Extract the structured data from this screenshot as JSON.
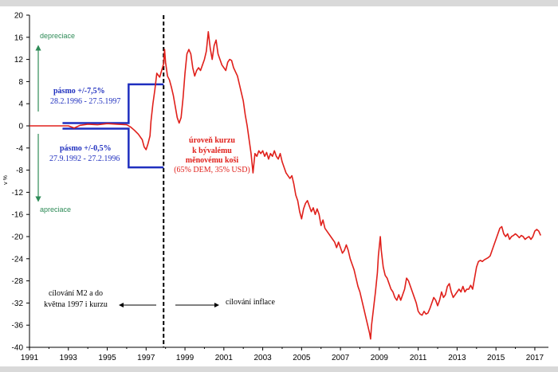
{
  "chart_data": {
    "type": "line",
    "ylabel": "v %",
    "xlim": [
      1991,
      2017.7
    ],
    "ylim": [
      -40,
      20
    ],
    "grid": false,
    "x_ticks": [
      "1991",
      "1993",
      "1995",
      "1997",
      "1999",
      "2001",
      "2003",
      "2005",
      "2007",
      "2009",
      "2011",
      "2013",
      "2015",
      "2017"
    ],
    "y_ticks": [
      "20",
      "16",
      "12",
      "8",
      "4",
      "0",
      "-4",
      "-8",
      "-12",
      "-16",
      "-20",
      "-24",
      "-28",
      "-32",
      "-36",
      "-40"
    ],
    "colors": {
      "exchange_rate": "#e0201b",
      "band": "#1f2fbf",
      "arrows": "#2e8b57",
      "regime_divider": "#000000"
    },
    "regime_divider_x": 1997.9,
    "series": [
      {
        "values_xy": [
          [
            1991.0,
            0
          ],
          [
            1992.0,
            0
          ],
          [
            1993.0,
            0
          ],
          [
            1993.3,
            -0.4
          ],
          [
            1993.6,
            0.1
          ],
          [
            1994.0,
            0.3
          ],
          [
            1994.5,
            0.2
          ],
          [
            1995.0,
            0.4
          ],
          [
            1995.5,
            0.3
          ],
          [
            1996.0,
            0.2
          ],
          [
            1996.2,
            -0.2
          ],
          [
            1996.4,
            -0.8
          ],
          [
            1996.6,
            -1.5
          ],
          [
            1996.8,
            -2.5
          ],
          [
            1996.9,
            -3.8
          ],
          [
            1997.0,
            -4.3
          ],
          [
            1997.1,
            -3.2
          ],
          [
            1997.2,
            -1.8
          ],
          [
            1997.25,
            0.8
          ],
          [
            1997.35,
            4.0
          ],
          [
            1997.45,
            6.5
          ],
          [
            1997.55,
            9.5
          ],
          [
            1997.7,
            8.8
          ],
          [
            1997.9,
            11.2
          ],
          [
            1997.95,
            13.8
          ],
          [
            1998.0,
            11.5
          ],
          [
            1998.1,
            9.0
          ],
          [
            1998.2,
            8.3
          ],
          [
            1998.3,
            7.0
          ],
          [
            1998.4,
            5.5
          ],
          [
            1998.5,
            3.5
          ],
          [
            1998.6,
            1.5
          ],
          [
            1998.7,
            0.5
          ],
          [
            1998.8,
            1.5
          ],
          [
            1998.9,
            5.0
          ],
          [
            1999.0,
            9.5
          ],
          [
            1999.1,
            13.0
          ],
          [
            1999.2,
            13.8
          ],
          [
            1999.3,
            13.0
          ],
          [
            1999.4,
            10.5
          ],
          [
            1999.5,
            9.0
          ],
          [
            1999.6,
            10.0
          ],
          [
            1999.7,
            10.5
          ],
          [
            1999.8,
            10.0
          ],
          [
            1999.9,
            11.0
          ],
          [
            2000.0,
            12.0
          ],
          [
            2000.1,
            13.5
          ],
          [
            2000.2,
            17.0
          ],
          [
            2000.3,
            14.0
          ],
          [
            2000.4,
            12.0
          ],
          [
            2000.5,
            14.5
          ],
          [
            2000.6,
            15.5
          ],
          [
            2000.7,
            13.0
          ],
          [
            2000.8,
            12.0
          ],
          [
            2000.9,
            11.0
          ],
          [
            2001.0,
            10.5
          ],
          [
            2001.1,
            10.0
          ],
          [
            2001.2,
            11.5
          ],
          [
            2001.3,
            12.0
          ],
          [
            2001.4,
            11.8
          ],
          [
            2001.5,
            10.5
          ],
          [
            2001.7,
            9.0
          ],
          [
            2001.8,
            7.5
          ],
          [
            2001.9,
            6.0
          ],
          [
            2002.0,
            4.5
          ],
          [
            2002.1,
            2.0
          ],
          [
            2002.2,
            0.0
          ],
          [
            2002.3,
            -2.5
          ],
          [
            2002.4,
            -5.0
          ],
          [
            2002.5,
            -8.5
          ],
          [
            2002.6,
            -5.0
          ],
          [
            2002.7,
            -5.5
          ],
          [
            2002.8,
            -4.5
          ],
          [
            2002.9,
            -5.0
          ],
          [
            2003.0,
            -4.5
          ],
          [
            2003.1,
            -5.5
          ],
          [
            2003.2,
            -4.8
          ],
          [
            2003.3,
            -6.0
          ],
          [
            2003.4,
            -5.0
          ],
          [
            2003.5,
            -5.5
          ],
          [
            2003.6,
            -4.5
          ],
          [
            2003.7,
            -5.5
          ],
          [
            2003.8,
            -6.0
          ],
          [
            2003.9,
            -5.0
          ],
          [
            2004.0,
            -6.5
          ],
          [
            2004.1,
            -7.5
          ],
          [
            2004.2,
            -8.5
          ],
          [
            2004.4,
            -9.5
          ],
          [
            2004.5,
            -9.0
          ],
          [
            2004.6,
            -10.5
          ],
          [
            2004.7,
            -12.5
          ],
          [
            2004.8,
            -13.5
          ],
          [
            2004.9,
            -15.5
          ],
          [
            2005.0,
            -16.8
          ],
          [
            2005.1,
            -15.0
          ],
          [
            2005.2,
            -14.0
          ],
          [
            2005.3,
            -13.5
          ],
          [
            2005.4,
            -14.5
          ],
          [
            2005.5,
            -15.5
          ],
          [
            2005.6,
            -14.8
          ],
          [
            2005.7,
            -16.0
          ],
          [
            2005.8,
            -15.0
          ],
          [
            2005.9,
            -16.0
          ],
          [
            2006.0,
            -18.0
          ],
          [
            2006.1,
            -17.0
          ],
          [
            2006.2,
            -18.5
          ],
          [
            2006.3,
            -19.0
          ],
          [
            2006.5,
            -20.0
          ],
          [
            2006.6,
            -20.5
          ],
          [
            2006.7,
            -21.0
          ],
          [
            2006.8,
            -22.0
          ],
          [
            2006.9,
            -21.0
          ],
          [
            2007.0,
            -22.0
          ],
          [
            2007.1,
            -23.0
          ],
          [
            2007.2,
            -22.5
          ],
          [
            2007.3,
            -21.5
          ],
          [
            2007.4,
            -22.5
          ],
          [
            2007.5,
            -24.0
          ],
          [
            2007.6,
            -25.0
          ],
          [
            2007.7,
            -26.0
          ],
          [
            2007.8,
            -27.5
          ],
          [
            2007.9,
            -29.0
          ],
          [
            2008.0,
            -30.0
          ],
          [
            2008.1,
            -31.5
          ],
          [
            2008.2,
            -33.0
          ],
          [
            2008.3,
            -34.5
          ],
          [
            2008.4,
            -36.0
          ],
          [
            2008.5,
            -37.5
          ],
          [
            2008.55,
            -38.5
          ],
          [
            2008.6,
            -36.0
          ],
          [
            2008.7,
            -33.0
          ],
          [
            2008.8,
            -30.0
          ],
          [
            2008.9,
            -26.5
          ],
          [
            2008.95,
            -23.5
          ],
          [
            2009.05,
            -20.0
          ],
          [
            2009.1,
            -22.5
          ],
          [
            2009.2,
            -25.5
          ],
          [
            2009.3,
            -27.0
          ],
          [
            2009.4,
            -27.5
          ],
          [
            2009.5,
            -28.5
          ],
          [
            2009.6,
            -29.5
          ],
          [
            2009.7,
            -30.0
          ],
          [
            2009.8,
            -31.0
          ],
          [
            2009.9,
            -31.5
          ],
          [
            2010.0,
            -30.5
          ],
          [
            2010.1,
            -31.5
          ],
          [
            2010.2,
            -30.5
          ],
          [
            2010.3,
            -29.5
          ],
          [
            2010.4,
            -27.5
          ],
          [
            2010.5,
            -28.0
          ],
          [
            2010.6,
            -29.0
          ],
          [
            2010.7,
            -30.0
          ],
          [
            2010.8,
            -31.0
          ],
          [
            2010.9,
            -32.0
          ],
          [
            2011.0,
            -33.5
          ],
          [
            2011.1,
            -34.0
          ],
          [
            2011.2,
            -34.2
          ],
          [
            2011.3,
            -33.5
          ],
          [
            2011.4,
            -34.0
          ],
          [
            2011.5,
            -33.8
          ],
          [
            2011.6,
            -33.0
          ],
          [
            2011.7,
            -32.0
          ],
          [
            2011.8,
            -31.0
          ],
          [
            2011.9,
            -31.5
          ],
          [
            2012.0,
            -32.5
          ],
          [
            2012.1,
            -31.5
          ],
          [
            2012.2,
            -30.0
          ],
          [
            2012.3,
            -31.0
          ],
          [
            2012.4,
            -30.5
          ],
          [
            2012.5,
            -29.0
          ],
          [
            2012.6,
            -28.5
          ],
          [
            2012.7,
            -30.0
          ],
          [
            2012.8,
            -31.0
          ],
          [
            2012.9,
            -30.5
          ],
          [
            2013.0,
            -30.0
          ],
          [
            2013.1,
            -29.5
          ],
          [
            2013.2,
            -30.0
          ],
          [
            2013.3,
            -29.0
          ],
          [
            2013.4,
            -30.0
          ],
          [
            2013.5,
            -29.5
          ],
          [
            2013.6,
            -29.5
          ],
          [
            2013.7,
            -28.8
          ],
          [
            2013.8,
            -29.5
          ],
          [
            2013.9,
            -27.5
          ],
          [
            2014.0,
            -25.5
          ],
          [
            2014.1,
            -24.5
          ],
          [
            2014.2,
            -24.3
          ],
          [
            2014.3,
            -24.5
          ],
          [
            2014.4,
            -24.2
          ],
          [
            2014.5,
            -24.0
          ],
          [
            2014.6,
            -23.8
          ],
          [
            2014.7,
            -23.5
          ],
          [
            2014.8,
            -22.5
          ],
          [
            2014.9,
            -21.5
          ],
          [
            2015.0,
            -20.5
          ],
          [
            2015.1,
            -19.5
          ],
          [
            2015.2,
            -18.5
          ],
          [
            2015.3,
            -18.2
          ],
          [
            2015.4,
            -19.5
          ],
          [
            2015.5,
            -20.0
          ],
          [
            2015.6,
            -19.5
          ],
          [
            2015.7,
            -20.5
          ],
          [
            2015.8,
            -20.0
          ],
          [
            2015.9,
            -19.8
          ],
          [
            2016.0,
            -19.5
          ],
          [
            2016.1,
            -19.8
          ],
          [
            2016.2,
            -20.2
          ],
          [
            2016.3,
            -19.8
          ],
          [
            2016.4,
            -20.0
          ],
          [
            2016.5,
            -20.5
          ],
          [
            2016.6,
            -20.2
          ],
          [
            2016.7,
            -20.0
          ],
          [
            2016.8,
            -20.5
          ],
          [
            2016.9,
            -20.0
          ],
          [
            2017.0,
            -19.0
          ],
          [
            2017.1,
            -18.7
          ],
          [
            2017.2,
            -19.0
          ],
          [
            2017.3,
            -19.8
          ]
        ]
      },
      {
        "values_xy": [
          [
            1992.7,
            0.5
          ],
          [
            1996.1,
            0.5
          ],
          [
            1996.1,
            7.5
          ],
          [
            1997.9,
            7.5
          ]
        ]
      },
      {
        "values_xy": [
          [
            1992.7,
            -0.5
          ],
          [
            1996.1,
            -0.5
          ],
          [
            1996.1,
            -7.5
          ],
          [
            1997.9,
            -7.5
          ]
        ]
      }
    ],
    "annotations": {
      "depreciation": "depreciace",
      "appreciation": "apreciace",
      "band_wide_title": "pásmo +/-7,5%",
      "band_wide_dates": "28.2.1996 - 27.5.1997",
      "band_narrow_title": "pásmo +/-0,5%",
      "band_narrow_dates": "27.9.1992 - 27.2.1996",
      "rate_label_1": "úroveň kurzu",
      "rate_label_2": "k bývalému",
      "rate_label_3": "měnovému koši",
      "rate_label_4": "(65% DEM, 35% USD)",
      "regime_m2_1": "cílování M2 a do",
      "regime_m2_2": "května 1997 i kurzu",
      "regime_inflation": "cílování inflace"
    }
  }
}
